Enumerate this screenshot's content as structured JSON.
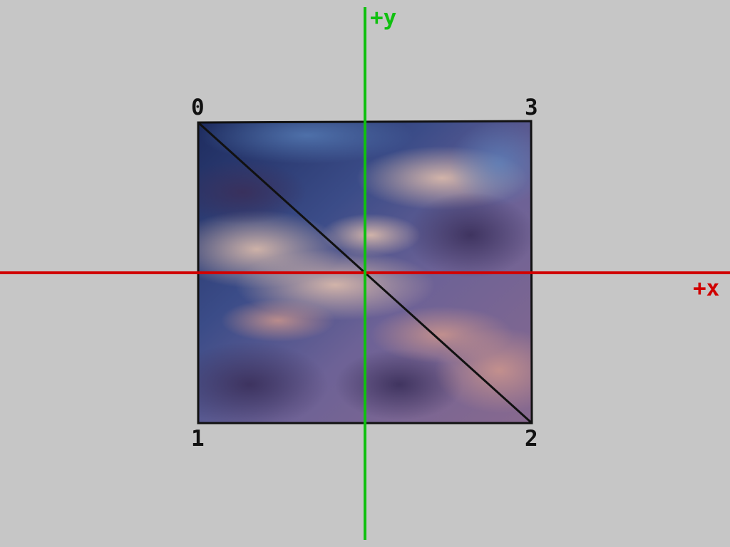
{
  "axes": {
    "x_label": "+x",
    "y_label": "+y",
    "x_color": "#d00000",
    "y_color": "#10c010"
  },
  "vertices": [
    {
      "label": "0"
    },
    {
      "label": "1"
    },
    {
      "label": "2"
    },
    {
      "label": "3"
    }
  ],
  "background": "#c6c6c6",
  "texture": {
    "description_colors": [
      "#1d2b5c",
      "#3a4a86",
      "#6a5a90",
      "#b89aa8",
      "#e0b8a0",
      "#7a5a8a"
    ]
  }
}
